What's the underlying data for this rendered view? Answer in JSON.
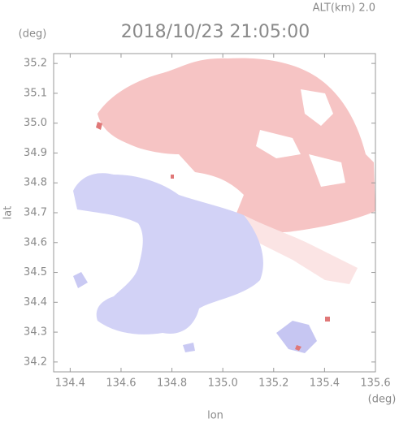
{
  "chart_data": {
    "type": "radar-map",
    "title": "2018/10/23 21:05:00",
    "subtitle": "ALT(km) 2.0",
    "x_label": "lon",
    "y_label": "lat",
    "x_unit": "(deg)",
    "y_unit": "(deg)",
    "xlim": [
      134.335,
      135.6
    ],
    "ylim": [
      34.167,
      35.233
    ],
    "xticks": [
      134.4,
      134.6,
      134.8,
      {
        "value": 135,
        "label": "135.0"
      },
      135.2,
      135.4,
      135.6
    ],
    "yticks": [
      34.2,
      34.3,
      34.4,
      34.5,
      34.6,
      34.7,
      34.8,
      34.9,
      {
        "value": 35,
        "label": "35.0"
      },
      35.1,
      35.2
    ]
  }
}
